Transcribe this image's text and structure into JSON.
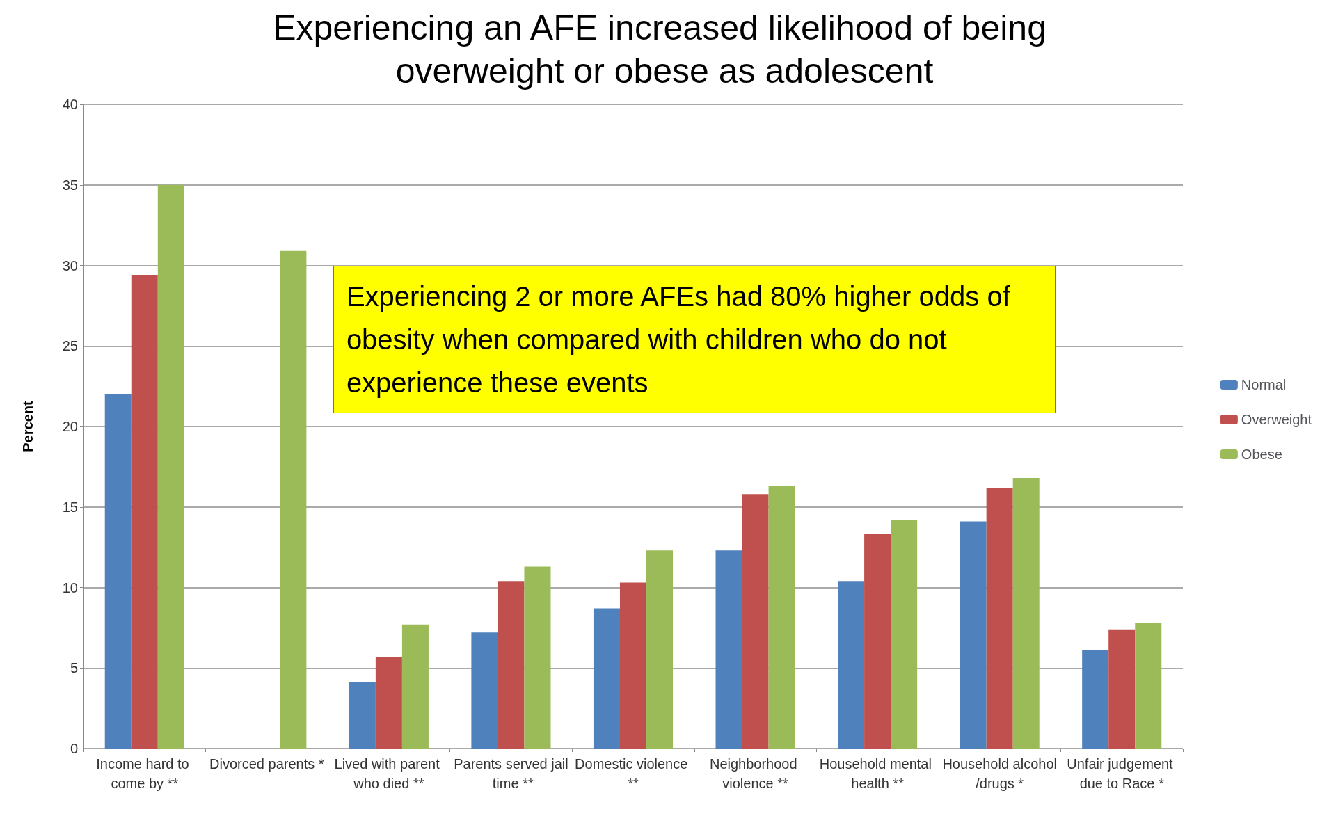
{
  "chart_data": {
    "type": "bar",
    "title": "Experiencing an AFE increased likelihood of being overweight or obese as adolescent",
    "ylabel": "Percent",
    "categories": [
      "Income hard to come by **",
      "Divorced parents *",
      "Lived with parent who died **",
      "Parents served jail time **",
      "Domestic violence **",
      "Neighborhood violence **",
      "Household mental health **",
      "Household alcohol/drugs *",
      "Unfair judgement due to Race *"
    ],
    "series": [
      {
        "name": "Normal",
        "color": "#4f81bd",
        "values": [
          22.0,
          null,
          4.1,
          7.2,
          8.7,
          12.3,
          10.4,
          14.1,
          6.1
        ]
      },
      {
        "name": "Overweight",
        "color": "#c0504d",
        "values": [
          29.4,
          null,
          5.7,
          10.4,
          10.3,
          15.8,
          13.3,
          16.2,
          7.4
        ]
      },
      {
        "name": "Obese",
        "color": "#9bbb59",
        "values": [
          35.0,
          30.9,
          7.7,
          11.3,
          12.3,
          16.3,
          14.2,
          16.8,
          7.8
        ]
      }
    ],
    "annotations": [
      "Experiencing 2 or more AFEs had 80% higher odds of obesity when compared with children who do not experience these events"
    ],
    "ylim": [
      0,
      40
    ],
    "yticks": [
      0,
      5,
      10,
      15,
      20,
      25,
      30,
      35,
      40
    ],
    "grid": "y",
    "legend": "right"
  }
}
